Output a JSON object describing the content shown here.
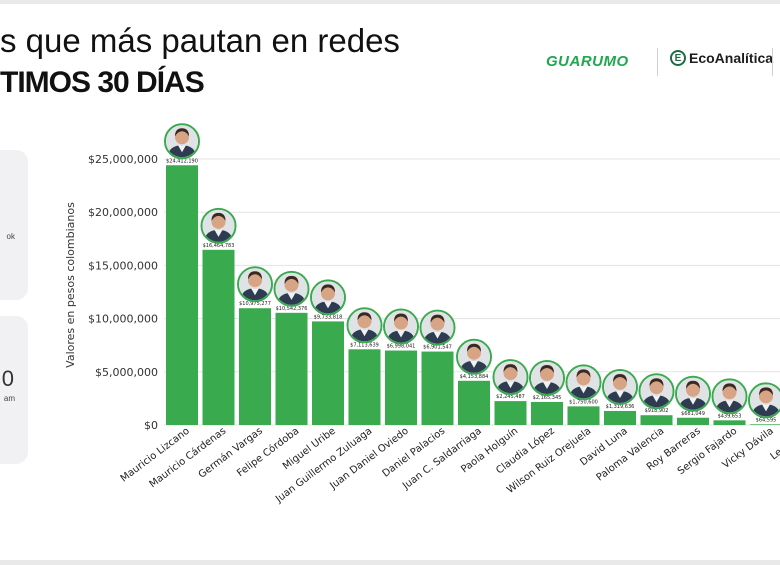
{
  "header": {
    "title_line1": "s que más pautan en redes",
    "title_line2": "TIMOS 30 DÍAS"
  },
  "logos": {
    "guarumo": "GUARUMO",
    "ecoanalitica_icon": "E",
    "ecoanalitica": "EcoAnalítica"
  },
  "side_panels": {
    "top_label": "ok",
    "bottom_glyph": "0",
    "bottom_label": "am"
  },
  "colors": {
    "bar": "#3aaa4f",
    "grid": "#e3e3e3",
    "brand_green": "#1fa84d"
  },
  "chart_data": {
    "type": "bar",
    "ylabel": "Valores en pesos colombianos",
    "ylim": [
      0,
      25000000
    ],
    "yticks": [
      {
        "value": 0,
        "label": "$0"
      },
      {
        "value": 5000000,
        "label": "$5,000,000"
      },
      {
        "value": 10000000,
        "label": "$10,000,000"
      },
      {
        "value": 15000000,
        "label": "$15,000,000"
      },
      {
        "value": 20000000,
        "label": "$20,000,000"
      },
      {
        "value": 25000000,
        "label": "$25,000,000"
      }
    ],
    "grid": true,
    "categories": [
      "Mauricio Lizcano",
      "Mauricio Cárdenas",
      "Germán Vargas",
      "Felipe Córdoba",
      "Miguel Uribe",
      "Juan Guillermo Zuluaga",
      "Juan Daniel Oviedo",
      "Daniel Palacios",
      "Juan C. Saldarriaga",
      "Paola Holguín",
      "Claudia López",
      "Wilson Ruiz Orejuela",
      "David Luna",
      "Paloma Valencia",
      "Roy Barreras",
      "Sergio Fajardo",
      "Vicky Dávila",
      "Leonardo"
    ],
    "values": [
      24412190,
      16464783,
      10975277,
      10542376,
      9733818,
      7113639,
      6998041,
      6901547,
      4153884,
      2245487,
      2165345,
      1750600,
      1319636,
      918902,
      681049,
      439653,
      64595,
      0
    ],
    "value_labels": [
      "$24,412,190",
      "$16,464,783",
      "$10,975,277",
      "$10,542,376",
      "$9,733,818",
      "$7,113,639",
      "$6,998,041",
      "$6,901,547",
      "$4,153,884",
      "$2,245,487",
      "$2,165,345",
      "$1,750,600",
      "$1,319,636",
      "$918,902",
      "$681,049",
      "$439,653",
      "$64,595",
      ""
    ],
    "avatar_icon": "candidate-portrait-icon"
  }
}
